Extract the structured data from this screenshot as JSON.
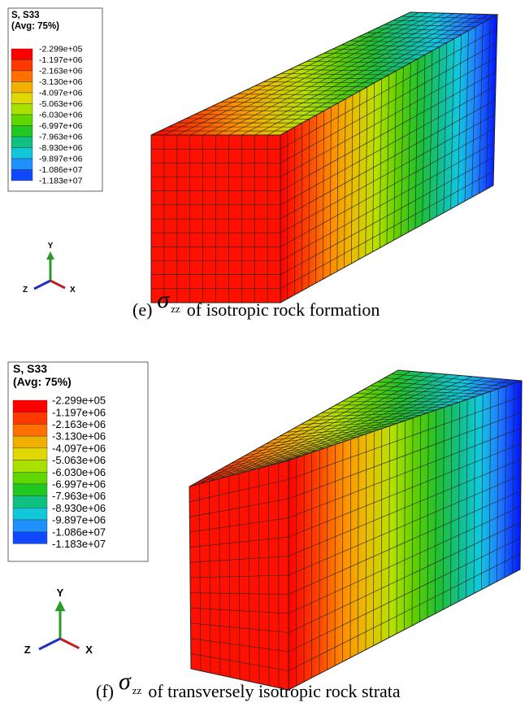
{
  "panels": [
    {
      "legend": {
        "title": "S, S33",
        "subtitle": "(Avg: 75%)",
        "labels": [
          "-2.299e+05",
          "-1.197e+06",
          "-2.163e+06",
          "-3.130e+06",
          "-4.097e+06",
          "-5.063e+06",
          "-6.030e+06",
          "-6.997e+06",
          "-7.963e+06",
          "-8.930e+06",
          "-9.897e+06",
          "-1.086e+07",
          "-1.183e+07"
        ]
      },
      "axes": {
        "y": "Y",
        "z": "Z",
        "x": "X"
      },
      "caption": {
        "label": "(e)",
        "symbol": "σ",
        "subscript": "zz",
        "text": "of isotropic rock formation"
      }
    },
    {
      "legend": {
        "title": "S, S33",
        "subtitle": "(Avg: 75%)",
        "labels": [
          "-2.299e+05",
          "-1.197e+06",
          "-2.163e+06",
          "-3.130e+06",
          "-4.097e+06",
          "-5.063e+06",
          "-6.030e+06",
          "-6.997e+06",
          "-7.963e+06",
          "-8.930e+06",
          "-9.897e+06",
          "-1.086e+07",
          "-1.183e+07"
        ]
      },
      "axes": {
        "y": "Y",
        "z": "Z",
        "x": "X"
      },
      "caption": {
        "label": "(f)",
        "symbol": "σ",
        "subscript": "zz",
        "text": "of transversely isotropic rock strata"
      }
    }
  ]
}
